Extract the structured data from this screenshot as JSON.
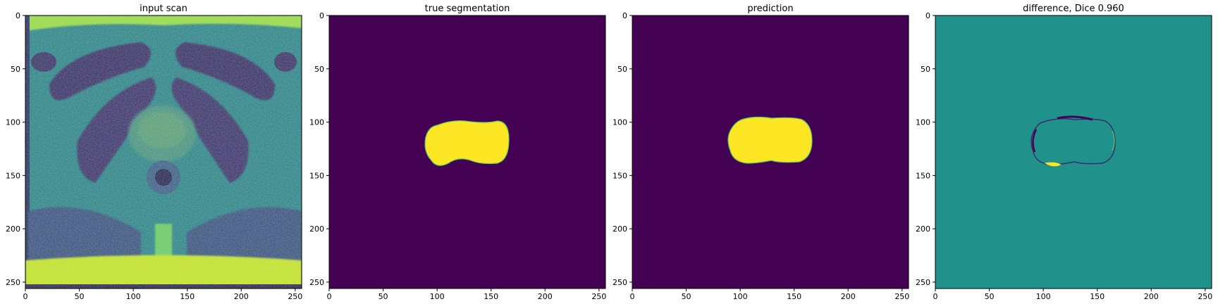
{
  "figure": {
    "panels": [
      {
        "id": "input-scan",
        "title": "input scan",
        "content": "mri"
      },
      {
        "id": "true-segmentation",
        "title": "true segmentation",
        "content": "mask-true"
      },
      {
        "id": "prediction",
        "title": "prediction",
        "content": "mask-pred"
      },
      {
        "id": "difference",
        "title": "difference, Dice 0.960",
        "content": "diff"
      }
    ],
    "ticks": {
      "x": [
        "0",
        "50",
        "100",
        "150",
        "200",
        "250"
      ],
      "y": [
        "0",
        "50",
        "100",
        "150",
        "200",
        "250"
      ]
    },
    "colors": {
      "background_dark": "#440154",
      "mask_yellow": "#fde725",
      "diff_teal": "#21918c",
      "mri_dark": "#3b1f5c",
      "mri_mid": "#31688e",
      "mri_green": "#35b779",
      "mri_bright": "#b5de2b"
    }
  }
}
